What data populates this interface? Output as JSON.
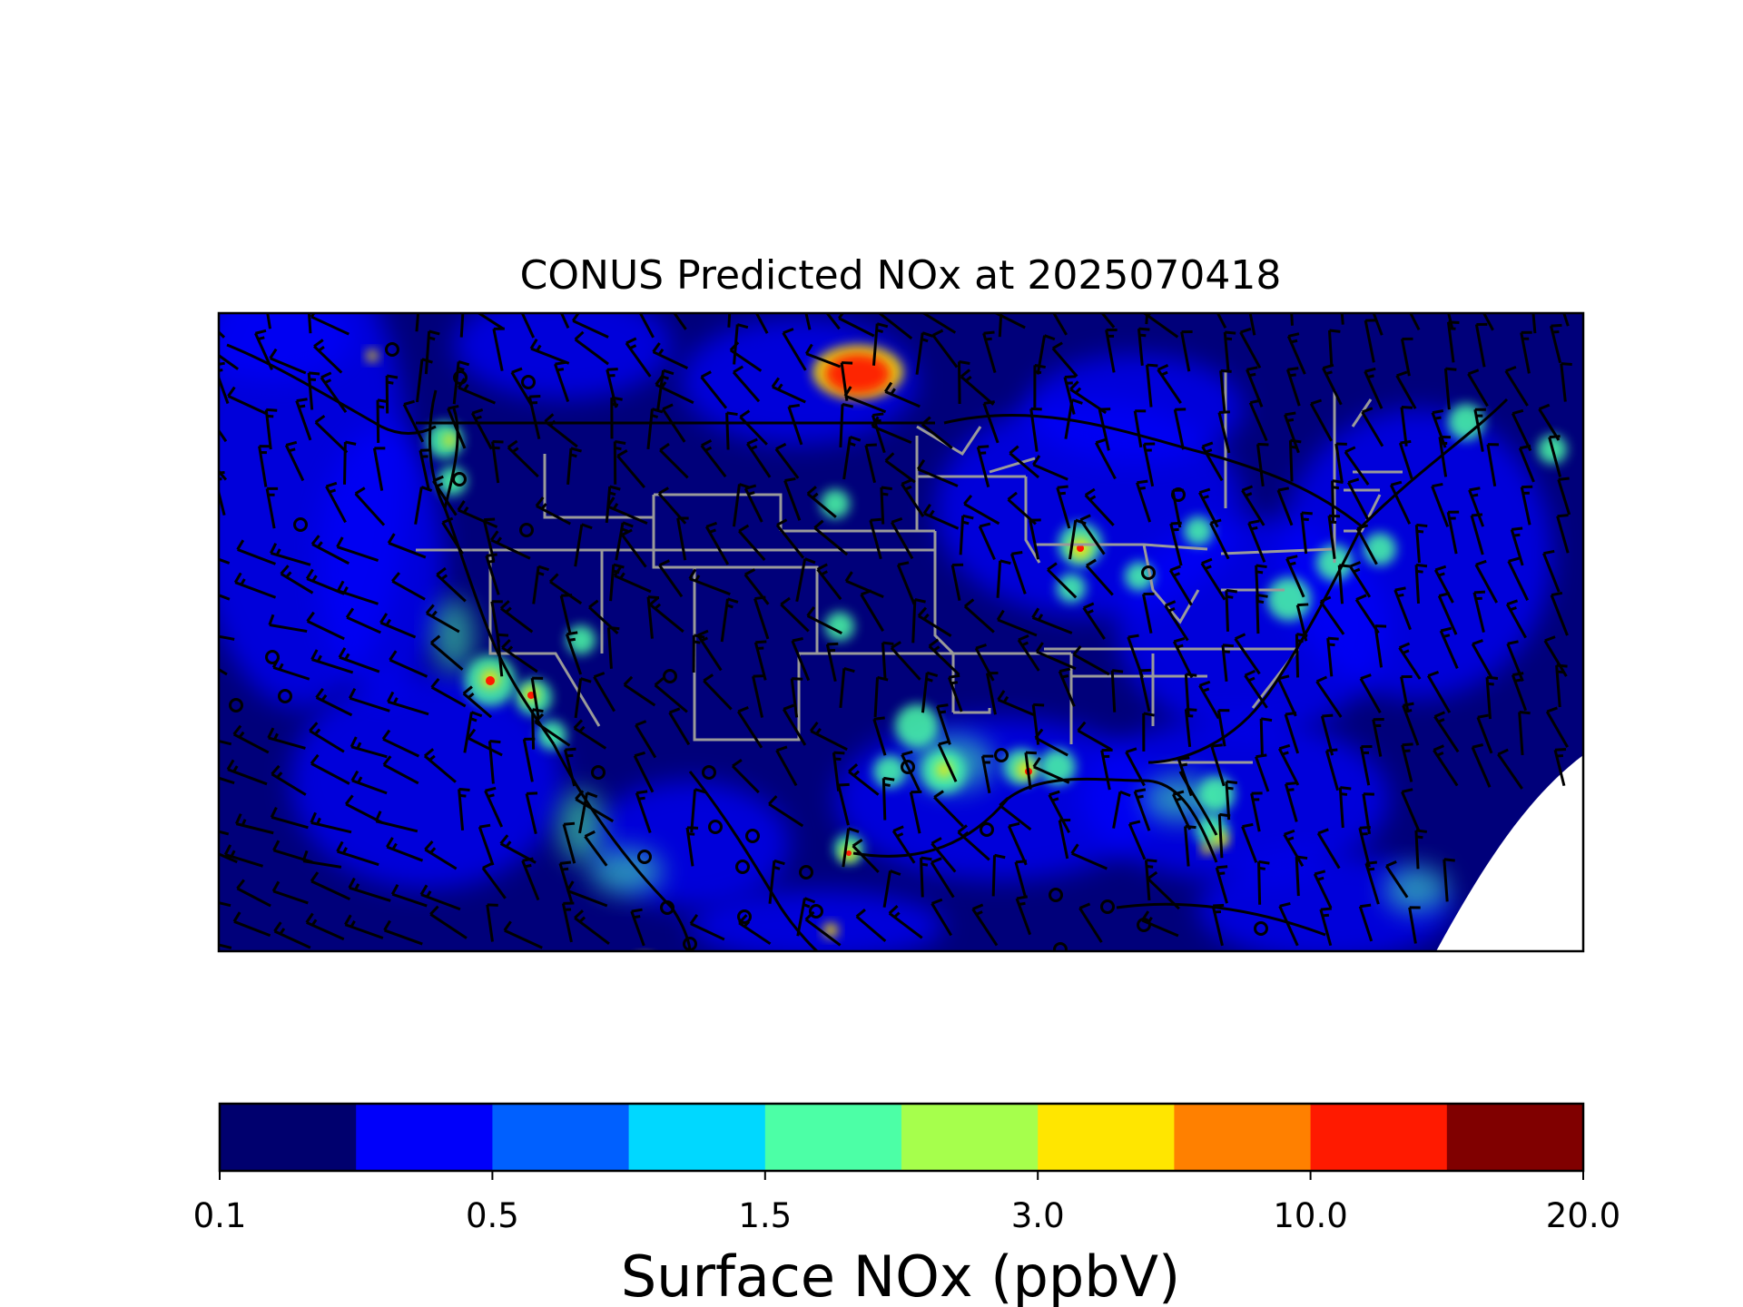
{
  "title": "CONUS Predicted NOx at 2025070418",
  "colorbar": {
    "label": "Surface NOx (ppbV)",
    "tick_labels": [
      "0.1",
      "0.5",
      "1.5",
      "3.0",
      "10.0",
      "20.0"
    ],
    "colors": [
      "#00006e",
      "#0000fa",
      "#0060ff",
      "#00d8ff",
      "#4cffa6",
      "#a6ff4c",
      "#ffe600",
      "#ff8000",
      "#ff1a00",
      "#800000"
    ]
  },
  "map": {
    "background_color": "#00007a",
    "state_border_color": "#9a9a9a",
    "coast_border_color": "#000000",
    "wind_barb_color": "#000000",
    "hotspot_colors": {
      "low": "#0000fa",
      "mid": "#4cffa6",
      "high": "#ffe600",
      "peak": "#ff1a00"
    }
  }
}
